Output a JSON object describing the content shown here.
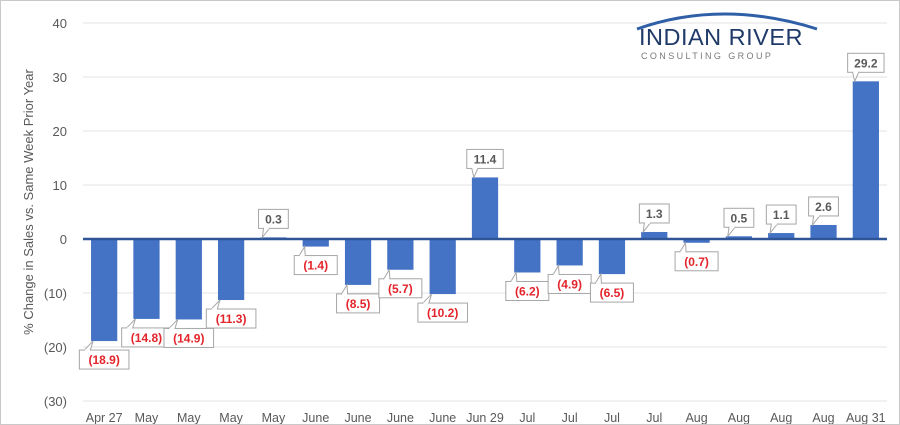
{
  "logo": {
    "title": "INDIAN RIVER",
    "subtitle": "CONSULTING GROUP",
    "colors": {
      "title": "#1f3a68",
      "arc": "#2f5fa7",
      "subtitle": "#7a7a7a"
    }
  },
  "chart_data": {
    "type": "bar",
    "title": "",
    "xlabel": "",
    "ylabel": "% Change in Sales vs. Same Week Prior Year",
    "ylim": [
      -30,
      40
    ],
    "yticks": [
      40,
      30,
      20,
      10,
      0,
      -10,
      -20,
      -30
    ],
    "ytick_labels": [
      "40",
      "30",
      "20",
      "10",
      "0",
      "(10)",
      "(20)",
      "(30)"
    ],
    "grid": true,
    "bar_color": "#4472c4",
    "negative_label_color": "#e3242b",
    "categories": [
      "Apr 27",
      "May",
      "May",
      "May",
      "May",
      "June",
      "June",
      "June",
      "June",
      "Jun 29",
      "Jul",
      "Jul",
      "Jul",
      "Jul",
      "Aug",
      "Aug",
      "Aug",
      "Aug",
      "Aug 31"
    ],
    "values": [
      -18.9,
      -14.8,
      -14.9,
      -11.3,
      0.3,
      -1.4,
      -8.5,
      -5.7,
      -10.2,
      11.4,
      -6.2,
      -4.9,
      -6.5,
      1.3,
      -0.7,
      0.5,
      1.1,
      2.6,
      29.2
    ],
    "data_labels": [
      "(18.9)",
      "(14.8)",
      "(14.9)",
      "(11.3)",
      "0.3",
      "(1.4)",
      "(8.5)",
      "(5.7)",
      "(10.2)",
      "11.4",
      "(6.2)",
      "(4.9)",
      "(6.5)",
      "1.3",
      "(0.7)",
      "0.5",
      "1.1",
      "2.6",
      "29.2"
    ]
  }
}
